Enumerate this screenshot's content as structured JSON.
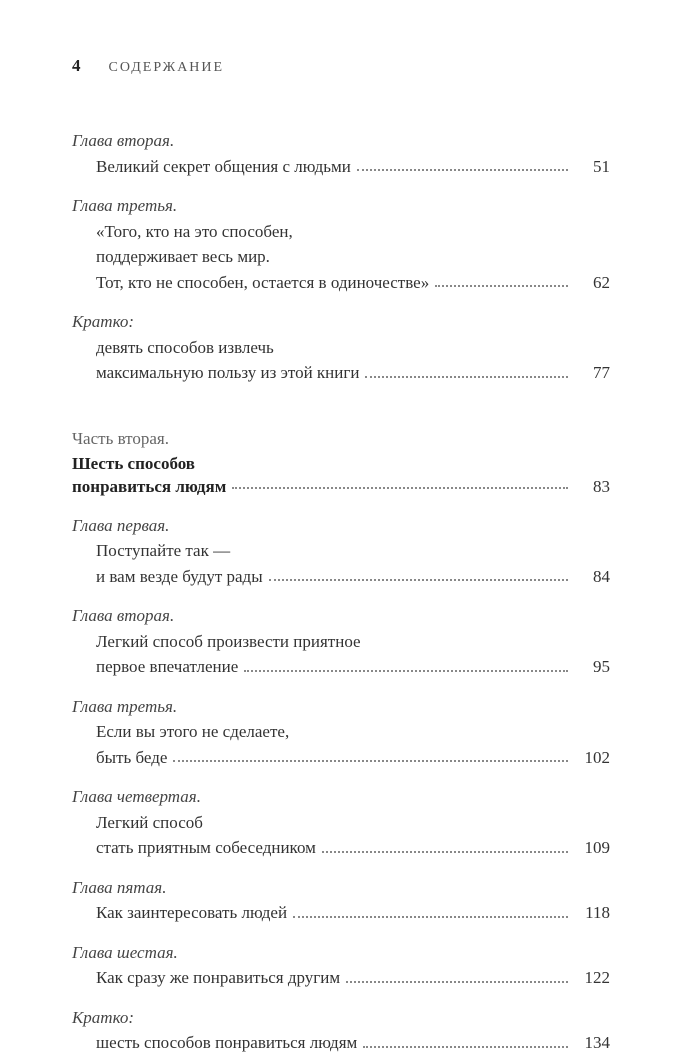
{
  "header": {
    "page_number": "4",
    "title": "СОДЕРЖАНИЕ"
  },
  "section1": {
    "entries": [
      {
        "label": "Глава вторая.",
        "lines": [
          "Великий секрет общения с людьми"
        ],
        "page": "51"
      },
      {
        "label": "Глава третья.",
        "lines": [
          "«Того, кто на это способен,",
          "поддерживает весь мир.",
          "Тот, кто не способен, остается в одиночестве»"
        ],
        "page": "62"
      },
      {
        "label": "Кратко:",
        "lines": [
          "девять способов извлечь",
          "максимальную пользу из этой книги"
        ],
        "page": "77"
      }
    ]
  },
  "part2": {
    "label": "Часть вторая.",
    "title_line1": "Шесть способов",
    "title_line2": "понравиться людям",
    "page": "83"
  },
  "section2": {
    "entries": [
      {
        "label": "Глава первая.",
        "lines": [
          "Поступайте так —",
          "и вам везде будут рады"
        ],
        "page": "84"
      },
      {
        "label": "Глава вторая.",
        "lines": [
          "Легкий способ произвести приятное",
          "первое впечатление"
        ],
        "page": "95"
      },
      {
        "label": "Глава третья.",
        "lines": [
          "Если вы этого не сделаете,",
          "быть беде"
        ],
        "page": "102"
      },
      {
        "label": "Глава четвертая.",
        "lines": [
          "Легкий способ",
          "стать приятным собеседником"
        ],
        "page": "109"
      },
      {
        "label": "Глава пятая.",
        "lines": [
          "Как заинтересовать людей"
        ],
        "page": "118"
      },
      {
        "label": "Глава шестая.",
        "lines": [
          "Как сразу же понравиться другим"
        ],
        "page": "122"
      },
      {
        "label": "Кратко:",
        "lines": [
          "шесть способов понравиться людям"
        ],
        "page": "134"
      }
    ]
  }
}
